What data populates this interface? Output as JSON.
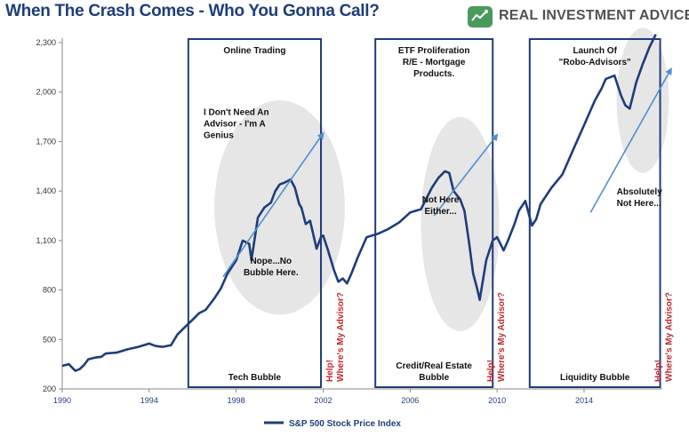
{
  "brand": {
    "name": "REAL INVESTMENT ADVICE",
    "logo_icon": "chart-badge-icon",
    "color": "#4a9a5c"
  },
  "chart_data": {
    "type": "line",
    "title": "When The Crash Comes - Who You Gonna Call?",
    "xlabel": "",
    "ylabel": "",
    "x_ticks": [
      "1990",
      "1994",
      "1998",
      "2002",
      "2006",
      "2010",
      "2014"
    ],
    "y_ticks": [
      "200",
      "500",
      "800",
      "1,100",
      "1,400",
      "1,700",
      "2,000",
      "2,300"
    ],
    "xlim": [
      1990,
      2017.6
    ],
    "ylim": [
      200,
      2300
    ],
    "grid": false,
    "legend_position": "bottom-center",
    "series": [
      {
        "name": "S&P 500 Stock Price Index",
        "color": "#1f3d7a",
        "x": [
          1990.0,
          1990.3,
          1990.6,
          1990.8,
          1991.0,
          1991.2,
          1991.5,
          1991.8,
          1992.0,
          1992.5,
          1993.0,
          1993.5,
          1994.0,
          1994.3,
          1994.6,
          1995.0,
          1995.3,
          1995.6,
          1996.0,
          1996.3,
          1996.6,
          1997.0,
          1997.3,
          1997.6,
          1997.8,
          1998.0,
          1998.3,
          1998.6,
          1998.7,
          1999.0,
          1999.3,
          1999.6,
          1999.8,
          2000.0,
          2000.2,
          2000.5,
          2000.7,
          2000.9,
          2001.0,
          2001.2,
          2001.4,
          2001.7,
          2001.9,
          2002.0,
          2002.2,
          2002.5,
          2002.7,
          2002.9,
          2003.1,
          2003.3,
          2003.6,
          2004.0,
          2004.5,
          2005.0,
          2005.5,
          2006.0,
          2006.5,
          2007.0,
          2007.3,
          2007.6,
          2007.8,
          2008.0,
          2008.3,
          2008.5,
          2008.7,
          2008.9,
          2009.1,
          2009.2,
          2009.5,
          2009.8,
          2010.0,
          2010.3,
          2010.5,
          2010.8,
          2011.0,
          2011.3,
          2011.6,
          2011.8,
          2012.0,
          2012.5,
          2013.0,
          2013.5,
          2014.0,
          2014.5,
          2014.8,
          2015.0,
          2015.4,
          2015.7,
          2015.9,
          2016.1,
          2016.4,
          2016.7,
          2017.0,
          2017.3
        ],
        "values": [
          340,
          350,
          310,
          320,
          345,
          380,
          390,
          395,
          415,
          420,
          440,
          455,
          475,
          460,
          455,
          465,
          530,
          570,
          620,
          660,
          680,
          750,
          810,
          900,
          940,
          980,
          1100,
          1080,
          980,
          1240,
          1300,
          1330,
          1400,
          1440,
          1450,
          1470,
          1420,
          1320,
          1300,
          1200,
          1220,
          1050,
          1120,
          1130,
          1050,
          920,
          850,
          870,
          840,
          900,
          1000,
          1120,
          1140,
          1170,
          1210,
          1270,
          1290,
          1420,
          1480,
          1520,
          1510,
          1400,
          1350,
          1280,
          1100,
          900,
          800,
          740,
          980,
          1100,
          1120,
          1040,
          1100,
          1200,
          1280,
          1340,
          1190,
          1230,
          1320,
          1420,
          1500,
          1650,
          1800,
          1950,
          2020,
          2080,
          2100,
          1980,
          1920,
          1900,
          2060,
          2170,
          2270,
          2350
        ]
      }
    ],
    "regions": [
      {
        "start": 1995.8,
        "end": 2001.9,
        "top_label": "Online Trading",
        "bottom_label": "Tech Bubble"
      },
      {
        "start": 2004.4,
        "end": 2009.8,
        "top_label": "ETF Proliferation\nR/E - Mortgage\nProducts.",
        "bottom_label": "Credit/Real Estate\nBubble"
      },
      {
        "start": 2011.5,
        "end": 2017.5,
        "top_label": "Launch Of\n\"Robo-Advisors\"",
        "bottom_label": "Liquidity Bubble"
      }
    ],
    "annotations": [
      {
        "text": "I Don't Need An\nAdvisor - I'm A\nGenius",
        "x": 1996.5,
        "y": 1860
      },
      {
        "text": "Nope...No\nBubble Here.",
        "x": 1999.6,
        "y": 960
      },
      {
        "text": "Not Here\nEither...",
        "x": 2007.4,
        "y": 1330
      },
      {
        "text": "Absolutely\nNot Here...",
        "x": 2015.5,
        "y": 1380
      }
    ],
    "callouts": [
      {
        "text": "Help!\nWhere's My Advisor?",
        "x": 2002.6
      },
      {
        "text": "Help!\nWhere's My Advisor?",
        "x": 2010.0
      },
      {
        "text": "Help!\nWhere's My Advisor?",
        "x": 2017.7
      }
    ],
    "trend_arrows": [
      {
        "from": [
          1997.4,
          880
        ],
        "to": [
          2002.0,
          1750
        ]
      },
      {
        "from": [
          2007.1,
          1250
        ],
        "to": [
          2010.0,
          1740
        ]
      },
      {
        "from": [
          2014.3,
          1270
        ],
        "to": [
          2018.0,
          2140
        ]
      }
    ],
    "highlights": [
      {
        "cx": 2000.0,
        "cy": 1300,
        "rx": 3.0,
        "ry": 650
      },
      {
        "cx": 2008.3,
        "cy": 1200,
        "rx": 1.8,
        "ry": 650
      },
      {
        "cx": 2016.7,
        "cy": 1950,
        "rx": 1.2,
        "ry": 440
      }
    ]
  }
}
